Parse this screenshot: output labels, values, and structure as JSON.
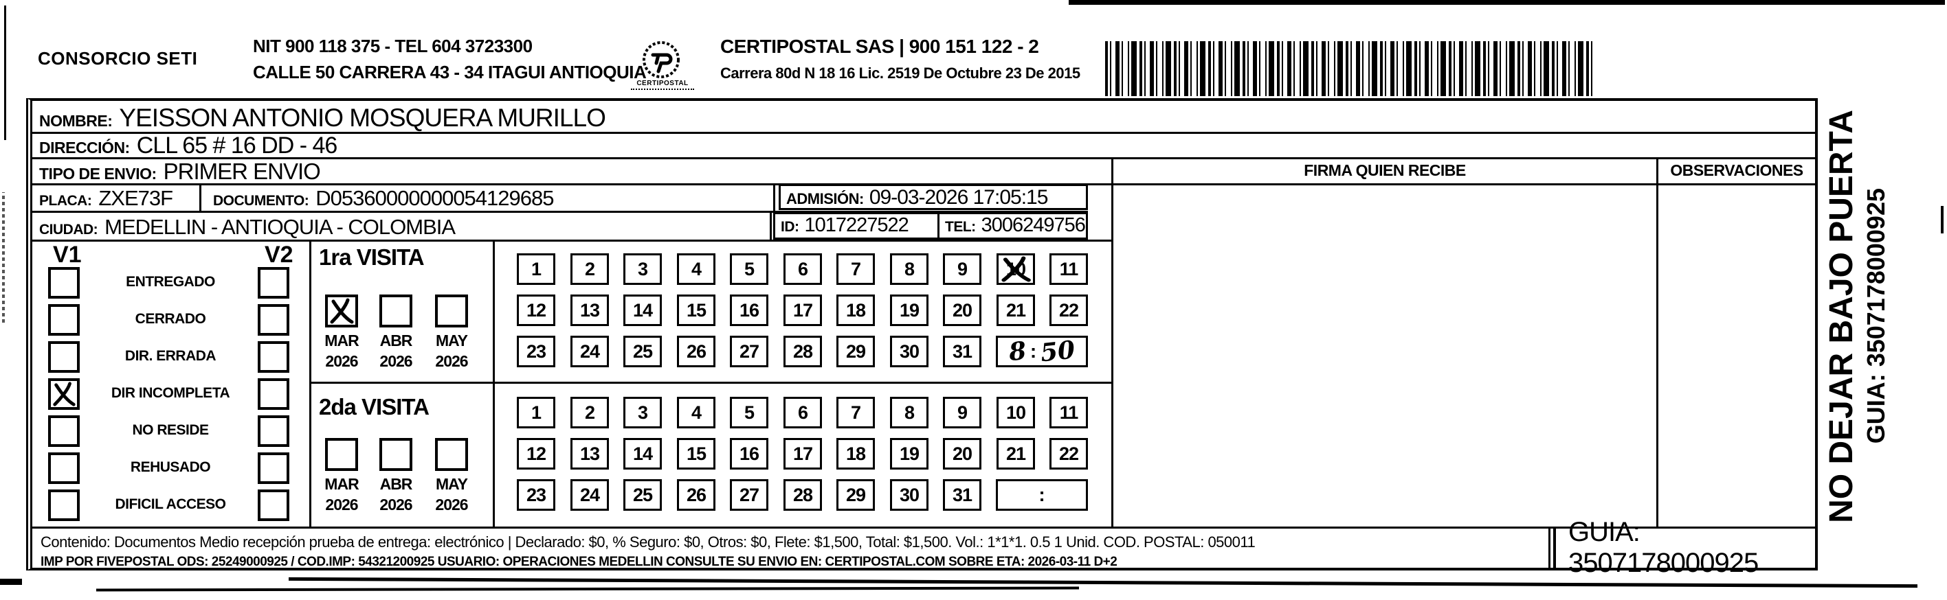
{
  "header": {
    "company": "CONSORCIO SETI",
    "nit_line": "NIT 900 118 375 - TEL 604 3723300",
    "address_line": "CALLE 50 CARRERA 43 - 34 ITAGUI ANTIOQUIA",
    "logo_caption": "CERTIPOSTAL",
    "certipostal_line": "CERTIPOSTAL SAS | 900 151 122 - 2",
    "certipostal_address": "Carrera 80d N 18 16  Lic. 2519 De Octubre 23 De 2015"
  },
  "icons": {
    "logo": "certipostal-stamp-seal",
    "barcode": "shipment-barcode"
  },
  "recipient": {
    "nombre_label": "NOMBRE:",
    "nombre": "YEISSON ANTONIO MOSQUERA MURILLO",
    "direccion_label": "DIRECCIÓN:",
    "direccion": "CLL 65 # 16 DD - 46",
    "tipo_envio_label": "TIPO DE ENVIO:",
    "tipo_envio": "PRIMER ENVIO",
    "placa_label": "PLACA:",
    "placa": "ZXE73F",
    "documento_label": "DOCUMENTO:",
    "documento": "D05360000000054129685",
    "admision_label": "ADMISIÓN:",
    "admision": "09-03-2026 17:05:15",
    "ciudad_label": "CIUDAD:",
    "ciudad": "MEDELLIN - ANTIOQUIA - COLOMBIA",
    "id_label": "ID:",
    "id": "1017227522",
    "tel_label": "TEL:",
    "tel": "3006249756"
  },
  "signature": {
    "firma_header": "FIRMA QUIEN RECIBE",
    "observaciones_header": "OBSERVACIONES"
  },
  "status_panel": {
    "v1_label": "V1",
    "v2_label": "V2",
    "rows": [
      {
        "label": "ENTREGADO",
        "v1": false,
        "v2": false
      },
      {
        "label": "CERRADO",
        "v1": false,
        "v2": false
      },
      {
        "label": "DIR. ERRADA",
        "v1": false,
        "v2": false
      },
      {
        "label": "DIR INCOMPLETA",
        "v1": true,
        "v2": false
      },
      {
        "label": "NO RESIDE",
        "v1": false,
        "v2": false
      },
      {
        "label": "REHUSADO",
        "v1": false,
        "v2": false
      },
      {
        "label": "DIFICIL ACCESO",
        "v1": false,
        "v2": false
      }
    ]
  },
  "day_numbers": [
    "1",
    "2",
    "3",
    "4",
    "5",
    "6",
    "7",
    "8",
    "9",
    "10",
    "11",
    "12",
    "13",
    "14",
    "15",
    "16",
    "17",
    "18",
    "19",
    "20",
    "21",
    "22",
    "23",
    "24",
    "25",
    "26",
    "27",
    "28",
    "29",
    "30",
    "31"
  ],
  "visits": [
    {
      "title": "1ra VISITA",
      "months": [
        {
          "month": "MAR",
          "year": "2026",
          "checked": true
        },
        {
          "month": "ABR",
          "year": "2026",
          "checked": false
        },
        {
          "month": "MAY",
          "year": "2026",
          "checked": false
        }
      ],
      "crossed_days": [
        "10"
      ],
      "time_separator": ":",
      "time_hour": "8",
      "time_minute": "50"
    },
    {
      "title": "2da VISITA",
      "months": [
        {
          "month": "MAR",
          "year": "2026",
          "checked": false
        },
        {
          "month": "ABR",
          "year": "2026",
          "checked": false
        },
        {
          "month": "MAY",
          "year": "2026",
          "checked": false
        }
      ],
      "crossed_days": [],
      "time_separator": ":",
      "time_hour": "",
      "time_minute": ""
    }
  ],
  "footer": {
    "content_line1": "Contenido: Documentos Medio recepción prueba de entrega: electrónico | Declarado: $0, % Seguro: $0, Otros: $0, Flete: $1,500, Total: $1,500. Vol.: 1*1*1. 0.5  1 Unid. COD. POSTAL: 050011",
    "content_line2": "IMP POR FIVEPOSTAL ODS: 25249000925 / COD.IMP: 54321200925 USUARIO: OPERACIONES MEDELLIN CONSULTE SU ENVIO EN: CERTIPOSTAL.COM SOBRE ETA: 2026-03-11 D+2",
    "guia": "GUIA: 3507178000925"
  },
  "side_note": {
    "line1": "NO DEJAR BAJO PUERTA",
    "line2": "GUIA: 3507178000925"
  }
}
